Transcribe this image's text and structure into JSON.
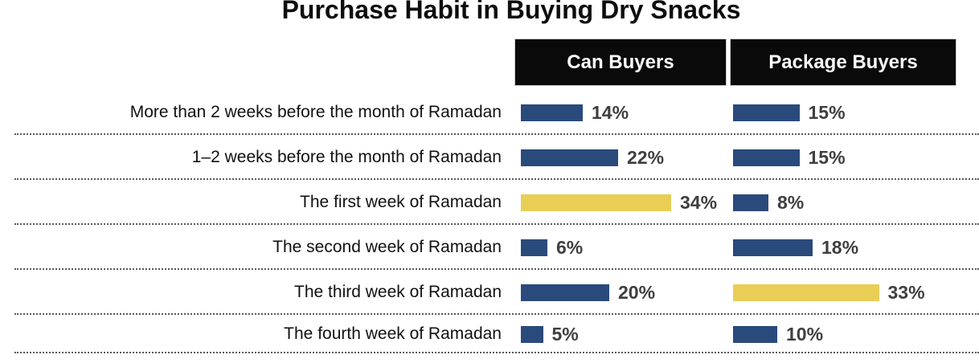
{
  "title": "Purchase Habit in Buying Dry Snacks",
  "chart_data": {
    "type": "bar",
    "orientation": "horizontal",
    "title": "Purchase Habit in Buying Dry Snacks",
    "categories": [
      "More than 2 weeks before the month of Ramadan",
      "1–2 weeks before the month of Ramadan",
      "The first week of Ramadan",
      "The second week of Ramadan",
      "The third week of Ramadan",
      "The fourth week of Ramadan"
    ],
    "series": [
      {
        "name": "Can Buyers",
        "values": [
          14,
          22,
          34,
          6,
          20,
          5
        ],
        "highlight_index": 2
      },
      {
        "name": "Package Buyers",
        "values": [
          15,
          15,
          8,
          18,
          33,
          10
        ],
        "highlight_index": 4
      }
    ],
    "value_suffix": "%",
    "xlim": [
      0,
      40
    ],
    "legend_position": "column-headers-top",
    "grid": "dotted-row-separators",
    "colors": {
      "bar": "#2A4A7B",
      "highlight": "#E9CE55",
      "header_bg": "#0A0A0A",
      "header_text": "#FFFFFF",
      "value_text": "#3F3F3F",
      "category_text": "#111111",
      "separator": "#595959",
      "title_text": "#0D0D0D"
    }
  }
}
